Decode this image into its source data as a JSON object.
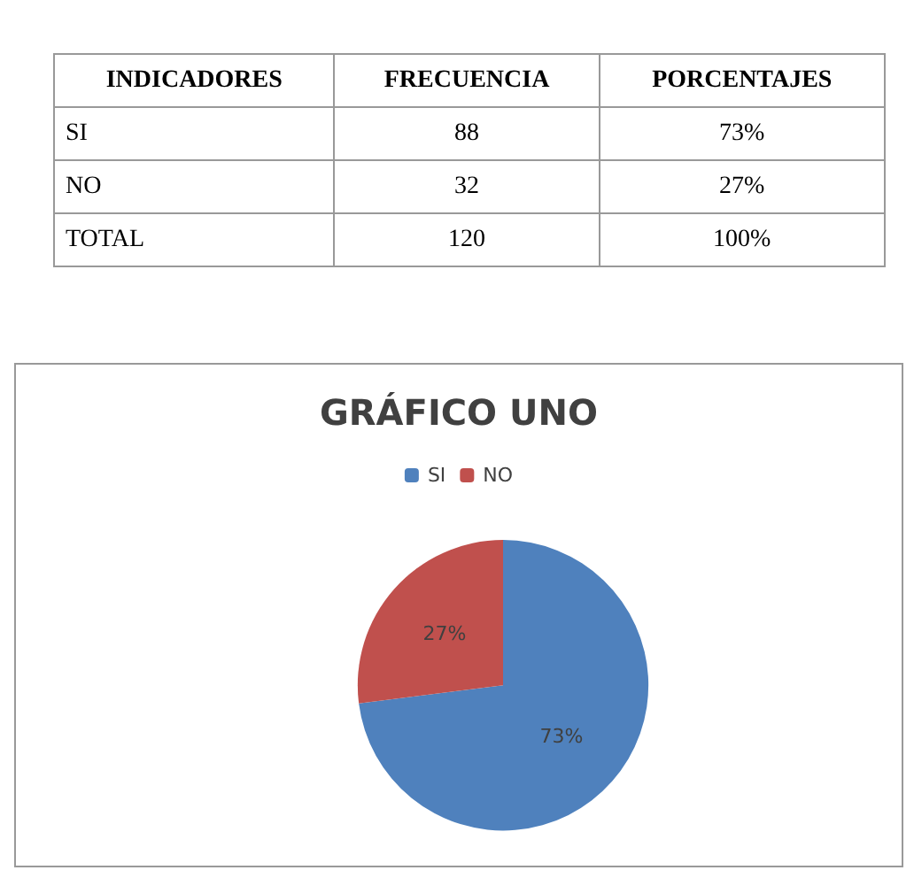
{
  "chart_data": {
    "type": "pie",
    "title": "GRÁFICO UNO",
    "categories": [
      "SI",
      "NO"
    ],
    "values": [
      73,
      27
    ],
    "value_labels": [
      "73%",
      "27%"
    ],
    "colors": [
      "#4f81bd",
      "#c0504d"
    ],
    "legend": "top",
    "annotations": [
      "INDICADORES",
      "FRECUENCIA",
      "PORCENTAJES",
      "88",
      "32",
      "TOTAL",
      "120",
      "100%"
    ]
  }
}
